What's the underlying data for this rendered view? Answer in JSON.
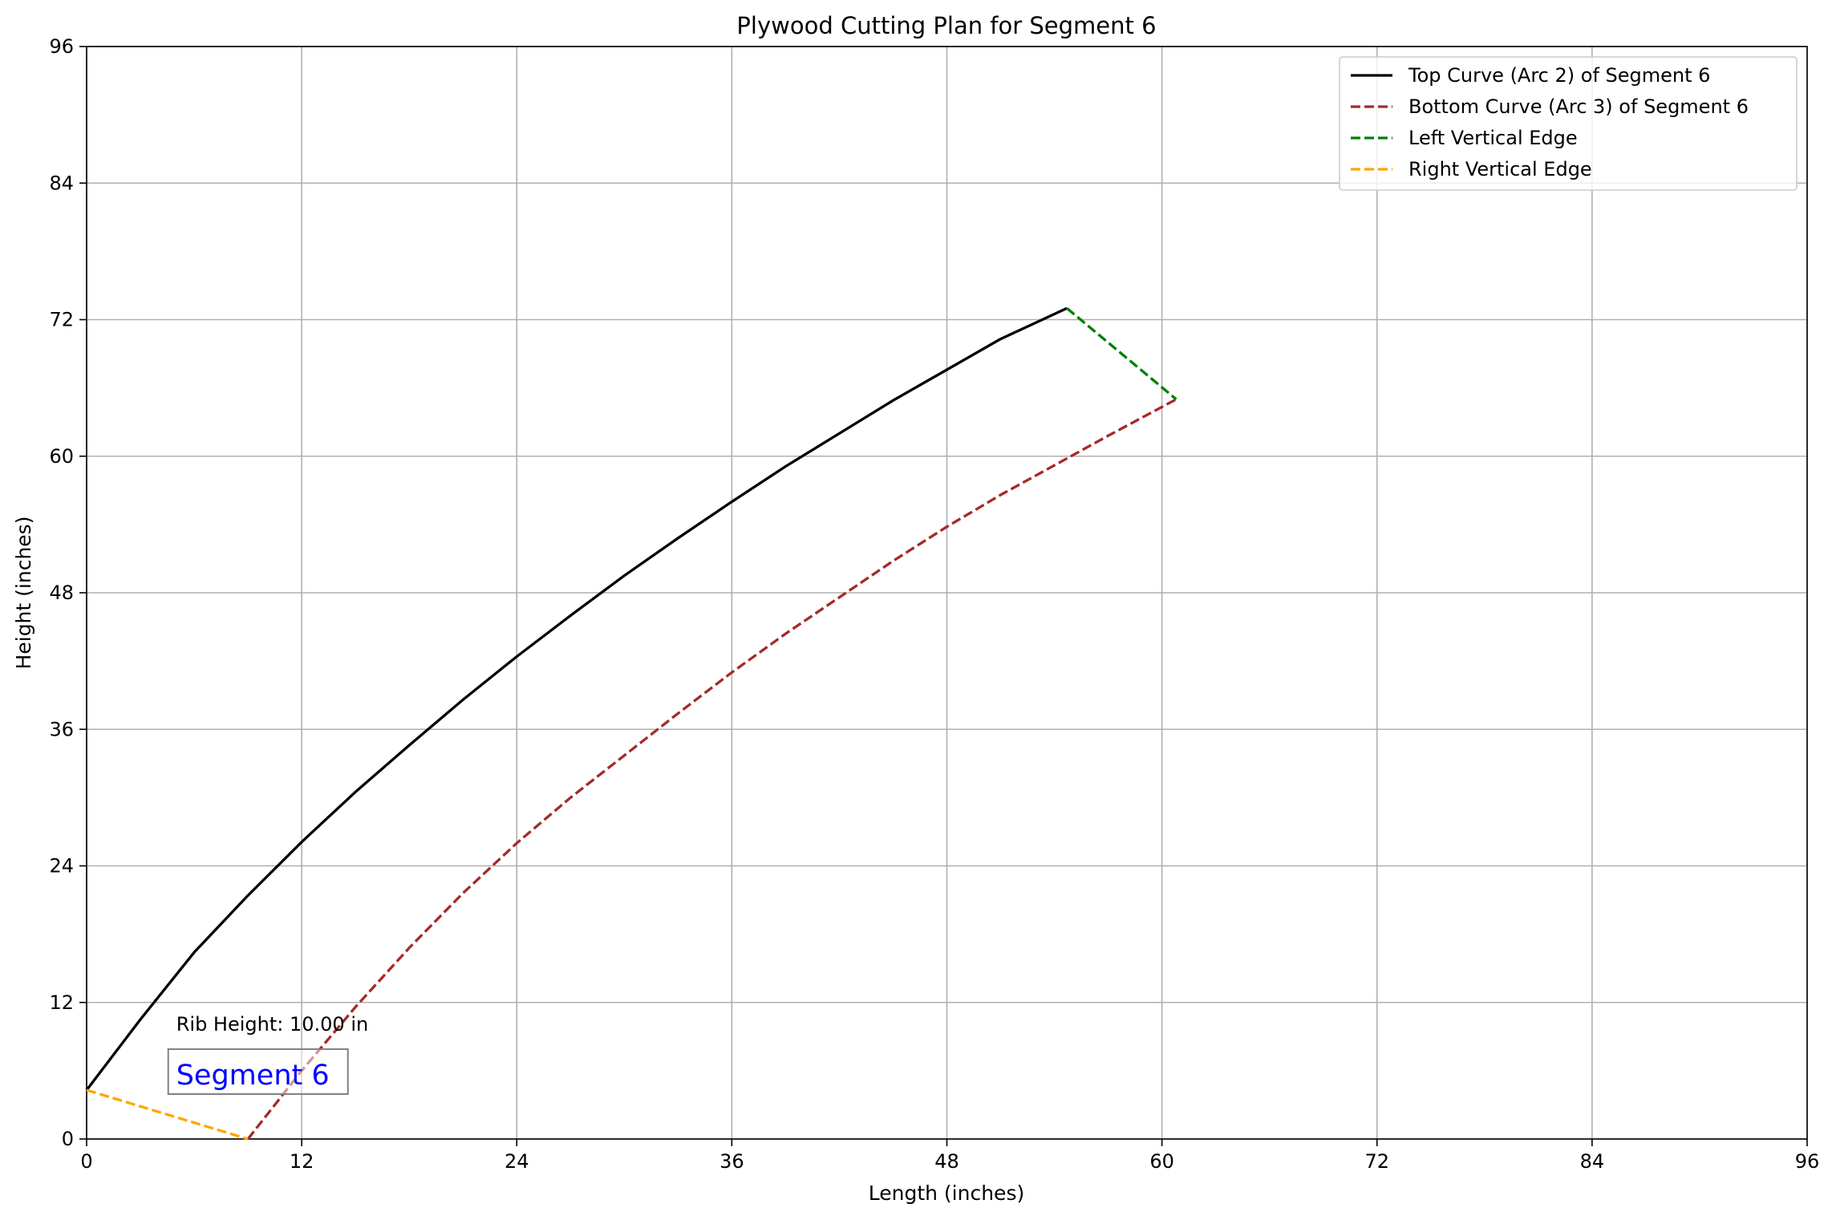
{
  "chart_data": {
    "type": "line",
    "title": "Plywood Cutting Plan for Segment 6",
    "xlabel": "Length (inches)",
    "ylabel": "Height (inches)",
    "xlim": [
      0,
      96
    ],
    "ylim": [
      0,
      96
    ],
    "xticks": [
      0,
      12,
      24,
      36,
      48,
      60,
      72,
      84,
      96
    ],
    "yticks": [
      0,
      12,
      24,
      36,
      48,
      60,
      72,
      84,
      96
    ],
    "grid": true,
    "legend_position": "top-right",
    "series": [
      {
        "name": "Top Curve (Arc 2) of Segment 6",
        "color": "#000000",
        "style": "solid",
        "points": [
          [
            0,
            4.3
          ],
          [
            3,
            10.5
          ],
          [
            6,
            16.4
          ],
          [
            9,
            21.4
          ],
          [
            12,
            26.1
          ],
          [
            15,
            30.5
          ],
          [
            18,
            34.6
          ],
          [
            21,
            38.6
          ],
          [
            24,
            42.4
          ],
          [
            27,
            46.0
          ],
          [
            30,
            49.5
          ],
          [
            33,
            52.8
          ],
          [
            36,
            56.0
          ],
          [
            39,
            59.1
          ],
          [
            42,
            62.0
          ],
          [
            45,
            64.9
          ],
          [
            48,
            67.6
          ],
          [
            51,
            70.3
          ],
          [
            54.7,
            73.0
          ]
        ]
      },
      {
        "name": "Bottom Curve (Arc 3) of Segment 6",
        "color": "#a52a2a",
        "style": "dashed",
        "points": [
          [
            9,
            0
          ],
          [
            12,
            6.0
          ],
          [
            15,
            11.6
          ],
          [
            18,
            16.8
          ],
          [
            21,
            21.6
          ],
          [
            24,
            26.0
          ],
          [
            27,
            30.0
          ],
          [
            30,
            33.7
          ],
          [
            33,
            37.4
          ],
          [
            36,
            41.0
          ],
          [
            39,
            44.4
          ],
          [
            42,
            47.6
          ],
          [
            45,
            50.8
          ],
          [
            48,
            53.8
          ],
          [
            51,
            56.6
          ],
          [
            54,
            59.2
          ],
          [
            57,
            61.8
          ],
          [
            60.8,
            65.0
          ]
        ]
      },
      {
        "name": "Left Vertical Edge",
        "color": "#008000",
        "style": "dashed",
        "points": [
          [
            54.7,
            73.0
          ],
          [
            60.8,
            65.0
          ]
        ]
      },
      {
        "name": "Right Vertical Edge",
        "color": "#ffa500",
        "style": "dashed",
        "points": [
          [
            0,
            4.3
          ],
          [
            9,
            0
          ]
        ]
      }
    ],
    "annotations": [
      {
        "text": "Rib Height: 10.00 in",
        "x": 5,
        "y": 9.5
      },
      {
        "text": "Segment 6",
        "x": 5,
        "y": 5.5,
        "color": "#0000ff",
        "boxed": true
      }
    ]
  }
}
